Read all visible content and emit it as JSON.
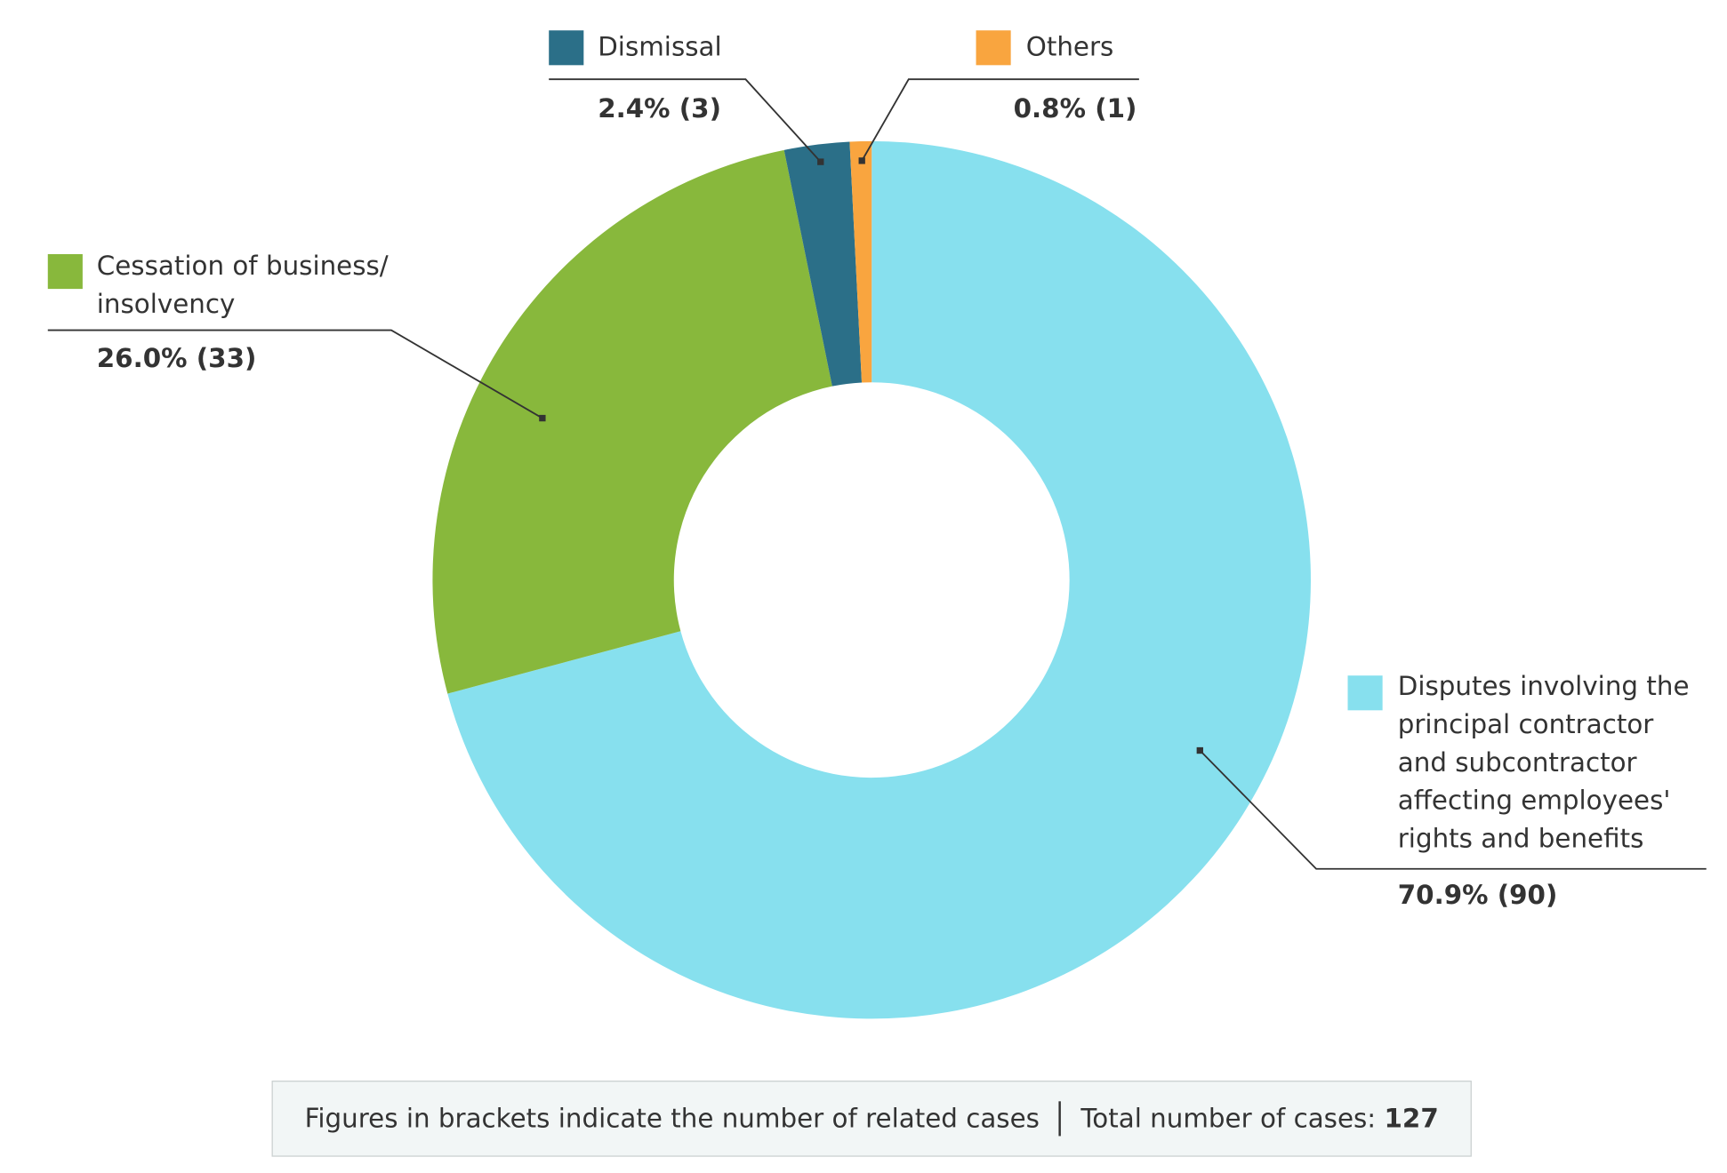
{
  "chart_data": {
    "type": "donut",
    "categories": [
      "Disputes involving the principal contractor and subcontractor affecting employees' rights and benefits",
      "Cessation of business/ insolvency",
      "Dismissal",
      "Others"
    ],
    "values": [
      70.9,
      26.0,
      2.4,
      0.8
    ],
    "value_labels": [
      "70.9% (90)",
      "26.0% (33)",
      "2.4% (3)",
      "0.8% (1)"
    ],
    "colors": [
      "#87e0ee",
      "#88b83c",
      "#2b6f88",
      "#f9a53f"
    ],
    "note": "Figures in brackets indicate the number of related cases",
    "total_label": "Total number of cases:",
    "total": 127
  }
}
